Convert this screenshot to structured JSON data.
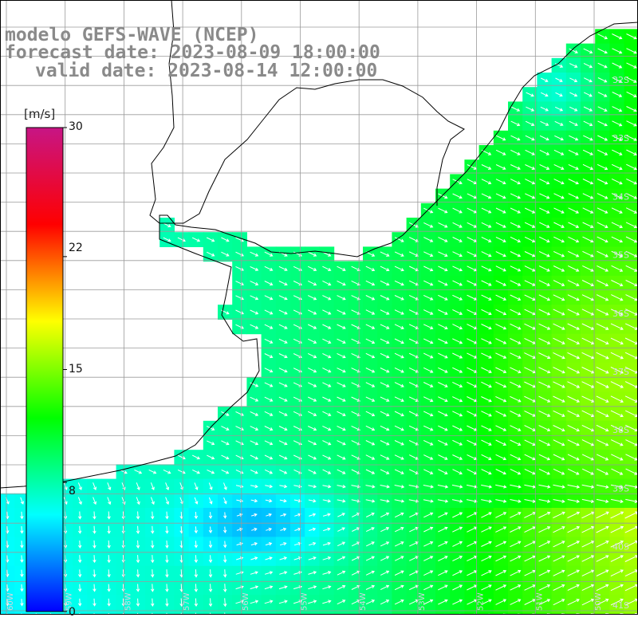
{
  "header": {
    "line1": "modelo GEFS-WAVE (NCEP)",
    "line2": "forecast date: 2023-08-09 18:00:00",
    "line3": "valid date: 2023-08-14 12:00:00"
  },
  "colorbar": {
    "unit": "[m/s]",
    "ticks": [
      "30",
      "22",
      "15",
      "8",
      "0"
    ],
    "tick_values": [
      30,
      22,
      15,
      8,
      0
    ],
    "range": [
      0,
      30
    ],
    "stops": [
      "#0000ff",
      "#00ffff",
      "#00ff00",
      "#ffff00",
      "#ff0000",
      "#c71585"
    ]
  },
  "map": {
    "land_color": "#ffffff",
    "coast_color": "#000000",
    "grid_color": "#9a9a9a",
    "lat_labels": [
      "32S",
      "33S",
      "34S",
      "35S",
      "36S",
      "37S",
      "38S",
      "39S",
      "40S",
      "41S"
    ],
    "lon_labels": [
      "60W",
      "59W",
      "58W",
      "57W",
      "56W",
      "55W",
      "54W",
      "53W",
      "52W",
      "51W",
      "50W"
    ]
  }
}
